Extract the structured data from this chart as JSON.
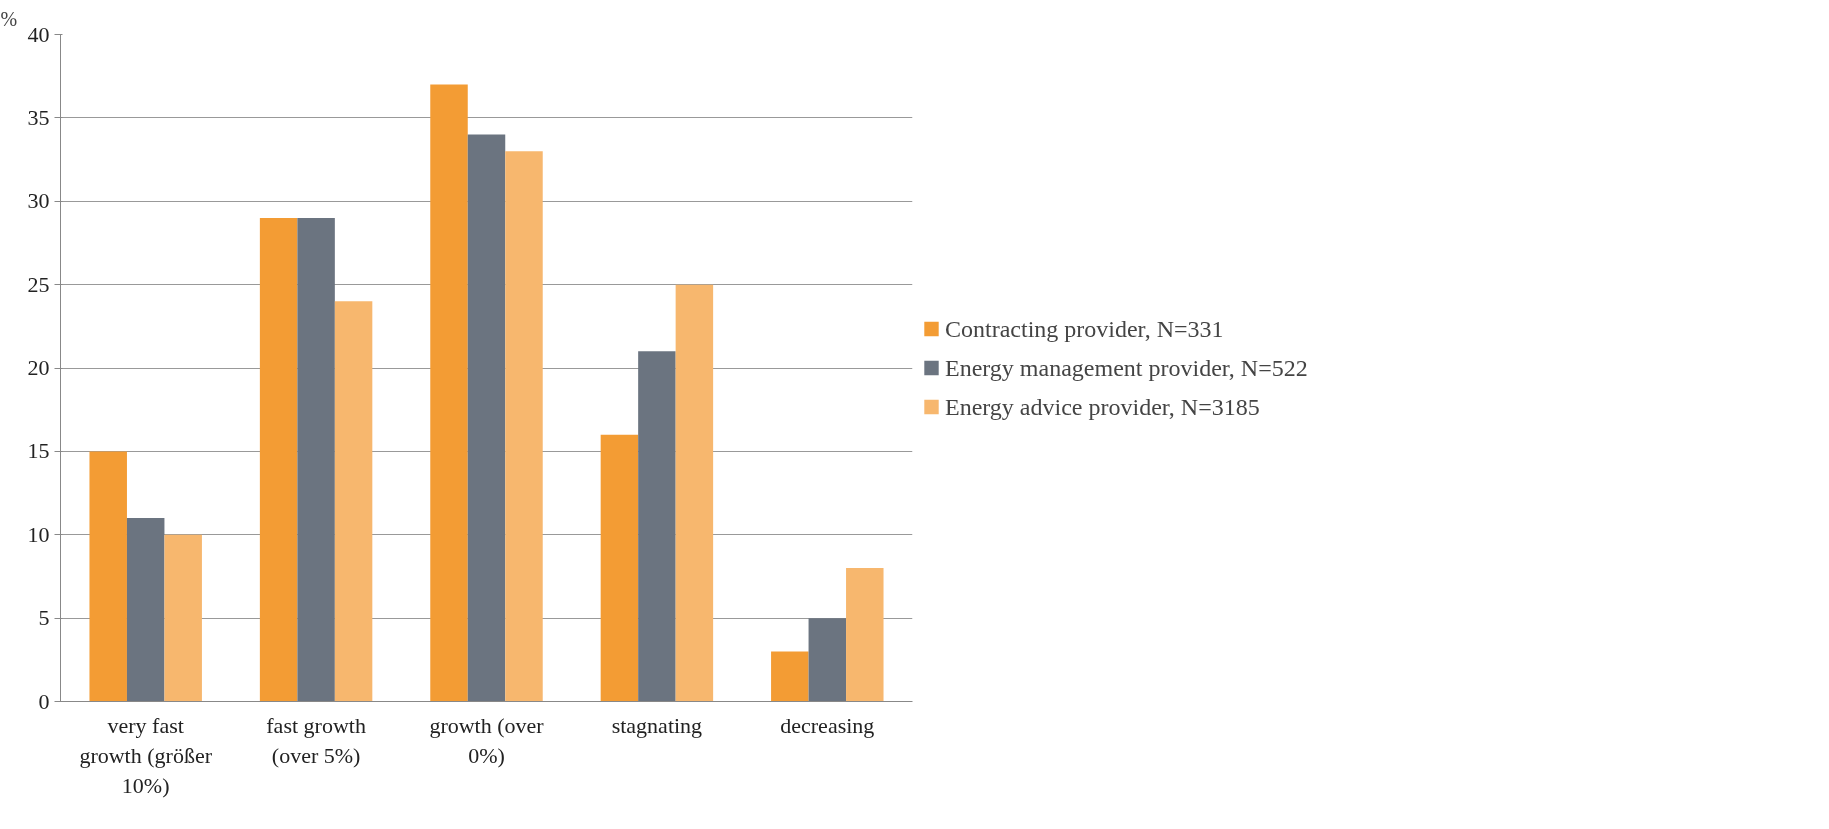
{
  "chart_data": {
    "type": "bar",
    "ylabel": "%",
    "categories": [
      "very fast growth (größer 10%)",
      "fast growth (over 5%)",
      "growth (over 0%)",
      "stagnating",
      "decreasing"
    ],
    "series": [
      {
        "name": "Contracting provider, N=331",
        "color": "#f39c34",
        "values": [
          15,
          29,
          37,
          16,
          3
        ]
      },
      {
        "name": "Energy management provider, N=522",
        "color": "#6b7480",
        "values": [
          11,
          29,
          34,
          21,
          5
        ]
      },
      {
        "name": "Energy advice provider, N=3185",
        "color": "#f7b76e",
        "values": [
          10,
          24,
          33,
          25,
          8
        ]
      }
    ],
    "ylim": [
      0,
      40
    ],
    "yticks": [
      0,
      5,
      10,
      15,
      20,
      25,
      30,
      35,
      40
    ],
    "grid": "y",
    "legend": "right"
  }
}
